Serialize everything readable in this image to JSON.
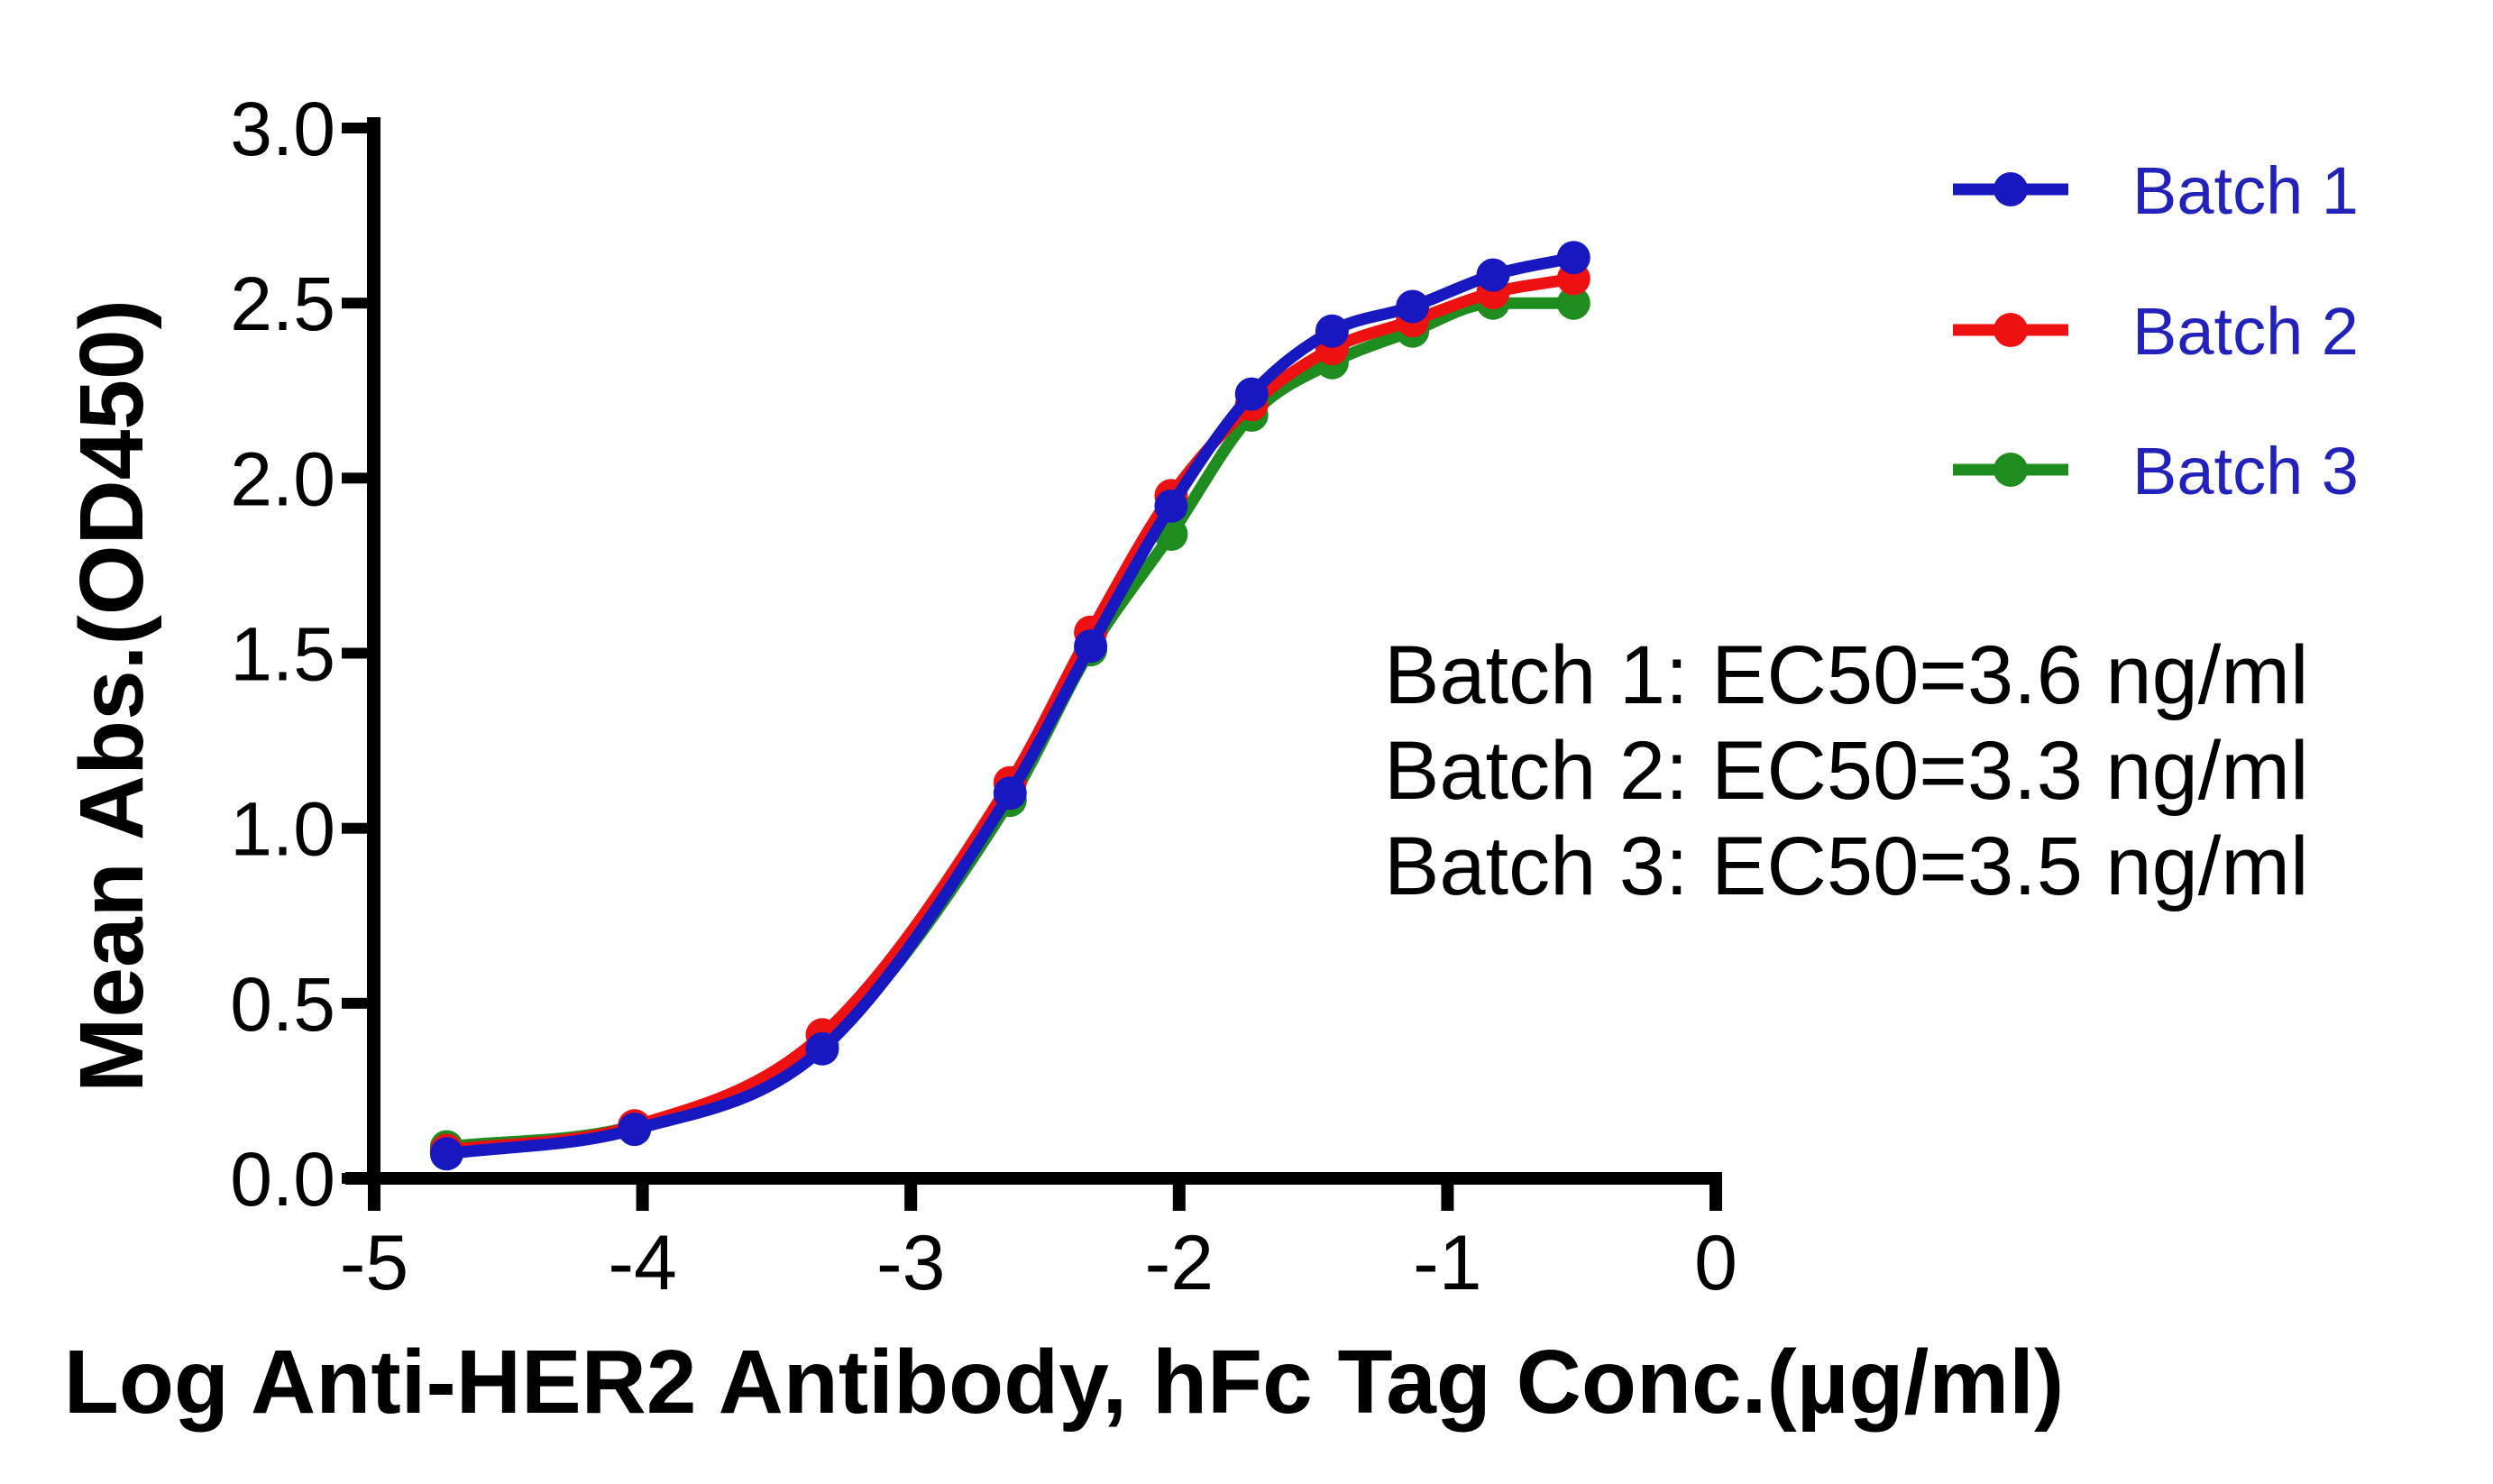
{
  "figure": {
    "background": "#ffffff"
  },
  "chart_data": {
    "type": "line",
    "title": "",
    "xlabel": "Log Anti-HER2 Antibody, hFc Tag Conc.(µg/ml)",
    "ylabel": "Mean Abs.(OD450)",
    "xlim": [
      -5,
      0
    ],
    "ylim": [
      0,
      3
    ],
    "grid": false,
    "legend_position": "top-right",
    "xticks": [
      -5,
      -4,
      -3,
      -2,
      -1,
      0
    ],
    "xtick_labels": [
      "-5",
      "-4",
      "-3",
      "-2",
      "-1",
      "0"
    ],
    "yticks": [
      0,
      0.5,
      1,
      1.5,
      2,
      2.5,
      3
    ],
    "ytick_labels": [
      "0.0",
      "0.5",
      "1.0",
      "1.5",
      "2.0",
      "2.5",
      "3.0"
    ],
    "x": [
      -4.73,
      -4.03,
      -3.33,
      -2.63,
      -2.33,
      -2.03,
      -1.73,
      -1.43,
      -1.13,
      -0.83,
      -0.53
    ],
    "series": [
      {
        "name": "Batch 1",
        "color": "#1818c0",
        "marker": "circle",
        "values": [
          0.07,
          0.14,
          0.37,
          1.1,
          1.52,
          1.92,
          2.24,
          2.42,
          2.49,
          2.58,
          2.63
        ]
      },
      {
        "name": "Batch 2",
        "color": "#ee1111",
        "marker": "circle",
        "values": [
          0.08,
          0.15,
          0.41,
          1.13,
          1.56,
          1.95,
          2.21,
          2.37,
          2.45,
          2.53,
          2.57
        ]
      },
      {
        "name": "Batch 3",
        "color": "#1e8c1e",
        "marker": "circle",
        "values": [
          0.09,
          0.15,
          0.38,
          1.08,
          1.51,
          1.84,
          2.18,
          2.33,
          2.42,
          2.5,
          2.5
        ]
      }
    ],
    "annotations": [
      "Batch 1: EC50=3.6 ng/ml",
      "Batch 2: EC50=3.3 ng/ml",
      "Batch 3: EC50=3.5 ng/ml"
    ],
    "colors": {
      "axis": "#000000",
      "text": "#000000",
      "legend_text": "#2222bb",
      "annotation_text": "#000000"
    }
  }
}
